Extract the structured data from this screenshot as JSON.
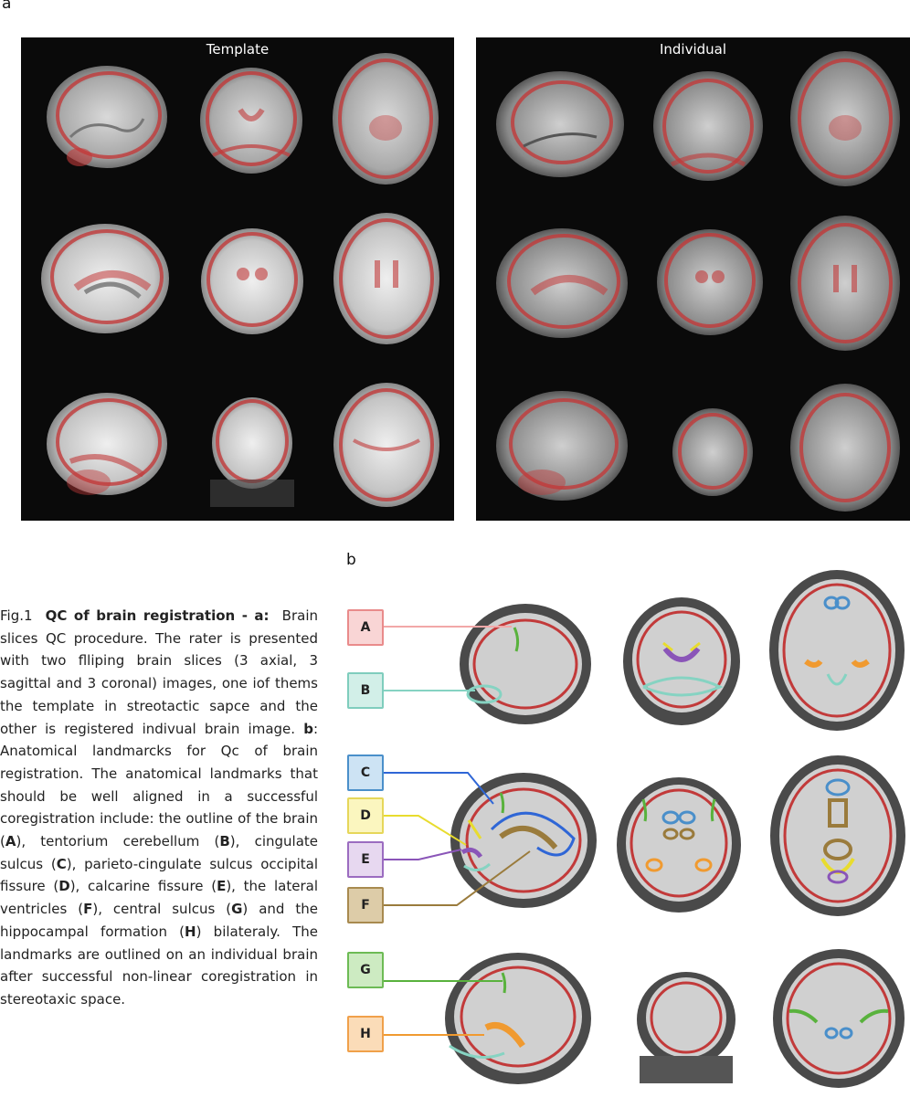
{
  "figure": {
    "panel_a_letter": "a",
    "panel_b_letter": "b",
    "template_title": "Template",
    "individual_title": "Individual"
  },
  "caption": {
    "fig_label": "Fig.1",
    "title": "QC of brain registration - a:",
    "part_a": "Brain slices QC procedure. The rater is presented with two flliping brain slices (3 axial, 3 sagittal and 3 coronal) images, one iof thems the template in streotactic sapce and the other is registered indivual brain image.",
    "b_label": "b",
    "part_b": ": Anatomical landmarcks for Qc of brain registration. The anatomical landmarks that should be well aligned in a successful coregistration include: the outline of the brain (",
    "A": "A",
    "t1": "), tentorium cerebellum (",
    "B": "B",
    "t2": "), cingulate sulcus (",
    "C": "C",
    "t3": "), parieto-cingulate sulcus occipital fissure (",
    "D": "D",
    "t4": "), calcarine fissure (",
    "E": "E",
    "t5": "), the lateral ventricles (",
    "F": "F",
    "t6": "), central sulcus (",
    "G": "G",
    "t7": ") and the hippocampal formation (",
    "H": "H",
    "t8": ") bilateraly. The landmarks are outlined on an individual brain after successful non-linear coregistration in stereotaxic space."
  },
  "landmarks": [
    {
      "id": "A",
      "fill": "#f9d5d5",
      "border": "#e98b8b",
      "line": "#f2a8a8"
    },
    {
      "id": "B",
      "fill": "#d2efe8",
      "border": "#7fcdbd",
      "line": "#86d3c2"
    },
    {
      "id": "C",
      "fill": "#cde3f4",
      "border": "#4a8fca",
      "line": "#2f66d6"
    },
    {
      "id": "D",
      "fill": "#fbf6bf",
      "border": "#e6d75a",
      "line": "#e8dc2e"
    },
    {
      "id": "E",
      "fill": "#e7d8f0",
      "border": "#9b6cc0",
      "line": "#8a55b8"
    },
    {
      "id": "F",
      "fill": "#ddcca8",
      "border": "#a88a4f",
      "line": "#9a7b3c"
    },
    {
      "id": "G",
      "fill": "#cdebc2",
      "border": "#6dbb55",
      "line": "#59b23d"
    },
    {
      "id": "H",
      "fill": "#fbdcb8",
      "border": "#f0a04a",
      "line": "#f09a30"
    }
  ],
  "colors": {
    "outline": "#c23a3a",
    "panel_bg": "#0a0a0a"
  }
}
